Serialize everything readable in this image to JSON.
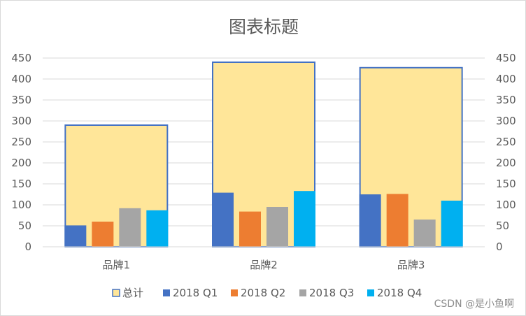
{
  "chart_data": {
    "type": "bar",
    "title": "图表标题",
    "categories": [
      "品牌1",
      "品牌2",
      "品牌3"
    ],
    "total": {
      "name": "总计",
      "values": [
        290,
        440,
        427
      ]
    },
    "series": [
      {
        "name": "2018 Q1",
        "values": [
          51,
          129,
          125
        ]
      },
      {
        "name": "2018 Q2",
        "values": [
          60,
          84,
          126
        ]
      },
      {
        "name": "2018 Q3",
        "values": [
          92,
          95,
          65
        ]
      },
      {
        "name": "2018 Q4",
        "values": [
          87,
          133,
          110
        ]
      }
    ],
    "ylim": [
      0,
      450
    ],
    "yticks": [
      "0",
      "50",
      "100",
      "150",
      "200",
      "250",
      "300",
      "350",
      "400",
      "450"
    ],
    "secondary_yticks": [
      "0",
      "50",
      "100",
      "150",
      "200",
      "250",
      "300",
      "350",
      "400",
      "450"
    ],
    "grid": true,
    "legend_position": "bottom",
    "colors": {
      "total_fill": "#FFE699",
      "total_border": "#4472C4",
      "series": [
        "#4472C4",
        "#ED7D31",
        "#A5A5A5",
        "#00B0F0"
      ],
      "grid": "#d9d9d9",
      "text": "#595959"
    }
  },
  "watermark": "CSDN @是小鱼啊"
}
